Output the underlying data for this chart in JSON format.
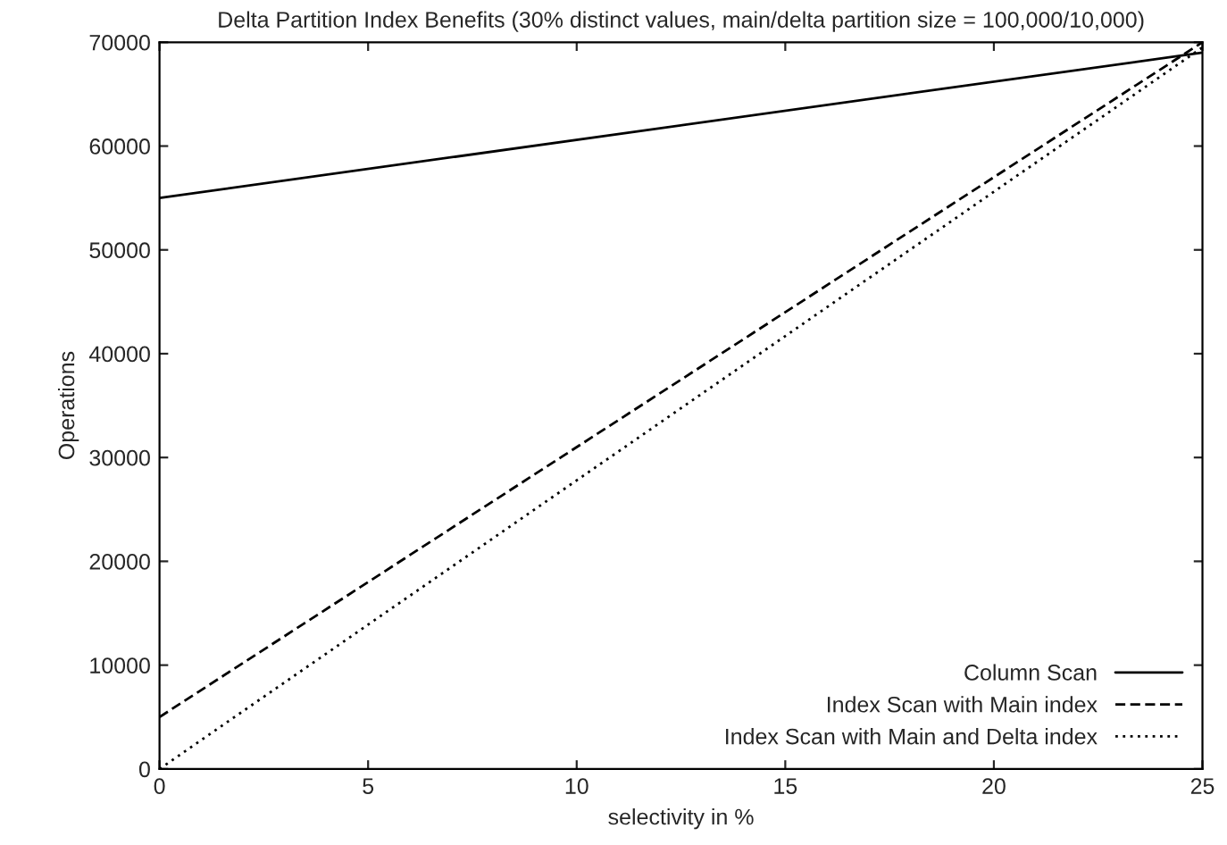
{
  "chart_data": {
    "type": "line",
    "title": "Delta Partition Index Benefits (30% distinct values, main/delta partition size = 100,000/10,000)",
    "xlabel": "selectivity in %",
    "ylabel": "Operations",
    "x": [
      0,
      25
    ],
    "series": [
      {
        "name": "Column Scan",
        "color": "#000000",
        "values": [
          55000,
          69000
        ],
        "line_style": "solid"
      },
      {
        "name": "Index Scan with Main index",
        "color": "#000000",
        "values": [
          5000,
          70000
        ],
        "line_style": "dashed"
      },
      {
        "name": "Index Scan with Main and Delta index",
        "color": "#000000",
        "values": [
          0,
          69500
        ],
        "line_style": "dotted"
      }
    ],
    "xlim": [
      0,
      25
    ],
    "ylim": [
      0,
      70000
    ],
    "xticks": [
      0,
      5,
      10,
      15,
      20,
      25
    ],
    "yticks": [
      0,
      10000,
      20000,
      30000,
      40000,
      50000,
      60000,
      70000
    ],
    "grid": false,
    "legend": "bottom right"
  }
}
